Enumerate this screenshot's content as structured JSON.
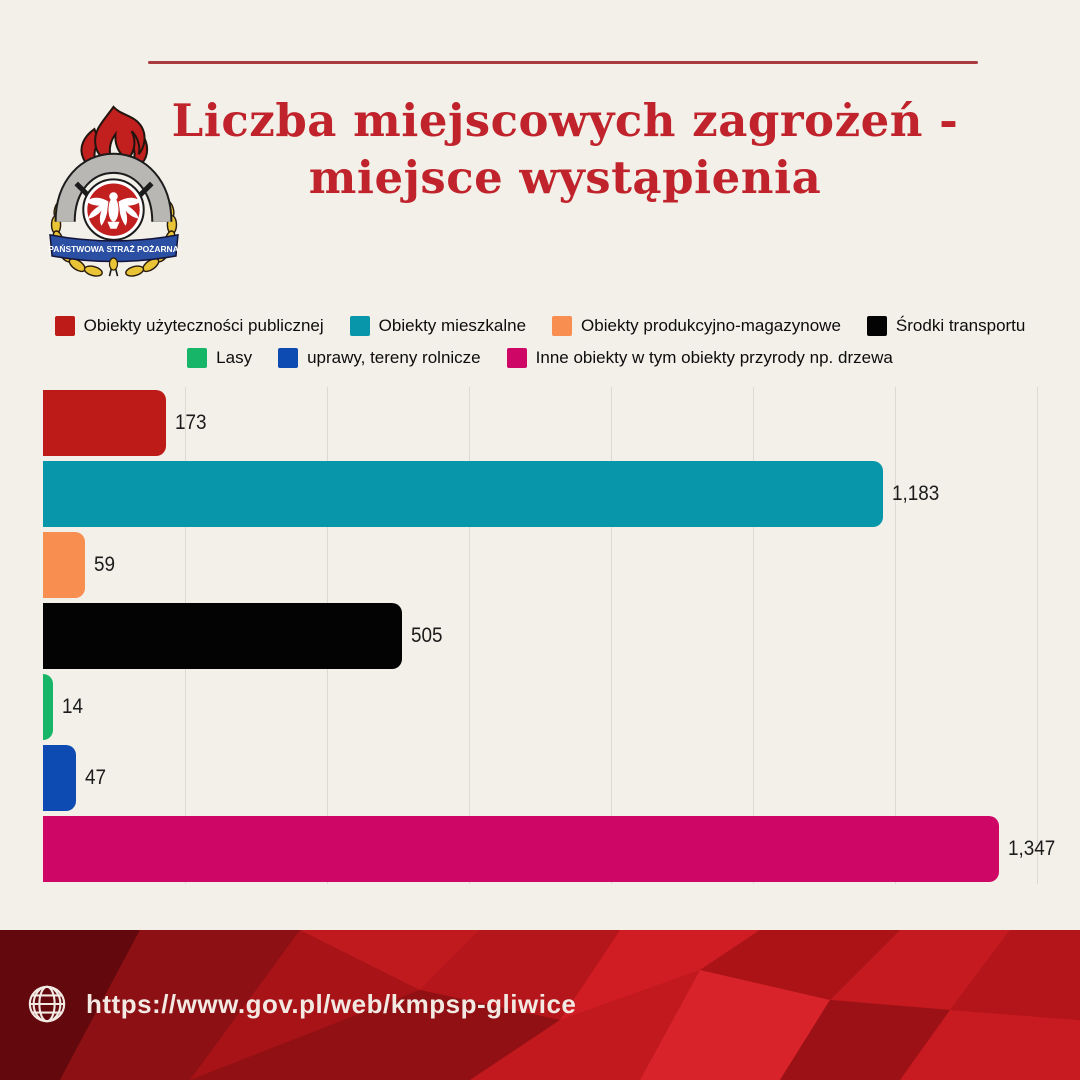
{
  "page": {
    "background": "#f2f0e8"
  },
  "header": {
    "title_line1": "Liczba miejscowych zagrożeń -",
    "title_line2": "miejsce wystąpienia",
    "title_color": "#c0232b",
    "logo": {
      "banner_text": "PAŃSTWOWA STRAŻ POŻARNA"
    }
  },
  "legend": {
    "rows": [
      [
        {
          "label": "Obiekty użyteczności publicznej",
          "color": "#bc1b18"
        },
        {
          "label": "Obiekty mieszkalne",
          "color": "#0796aa"
        },
        {
          "label": "Obiekty produkcyjno-magazynowe",
          "color": "#f88e4f"
        },
        {
          "label": "Środki transportu",
          "color": "#030303"
        }
      ],
      [
        {
          "label": "Lasy",
          "color": "#16b567"
        },
        {
          "label": "uprawy, tereny rolnicze",
          "color": "#0d4ab1"
        },
        {
          "label": "Inne obiekty w tym obiekty przyrody np. drzewa",
          "color": "#ce0766"
        }
      ]
    ]
  },
  "chart_data": {
    "type": "bar",
    "orientation": "horizontal",
    "title": "Liczba miejscowych zagrożeń - miejsce wystąpienia",
    "categories": [
      "Obiekty użyteczności publicznej",
      "Obiekty mieszkalne",
      "Obiekty produkcyjno-magazynowe",
      "Środki transportu",
      "Lasy",
      "uprawy, tereny rolnicze",
      "Inne obiekty w tym obiekty przyrody np. drzewa"
    ],
    "values": [
      173,
      1183,
      59,
      505,
      14,
      47,
      1347
    ],
    "value_labels": [
      "173",
      "1,183",
      "59",
      "505",
      "14",
      "47",
      "1,347"
    ],
    "colors": [
      "#bc1b18",
      "#0796aa",
      "#f88e4f",
      "#030303",
      "#16b567",
      "#0d4ab1",
      "#ce0766"
    ],
    "xlim": [
      0,
      1400
    ],
    "gridline_step": 200,
    "grid": true,
    "gridline_color": "#dcdad1",
    "legend_position": "top",
    "xlabel": "",
    "ylabel": ""
  },
  "footer": {
    "url": "https://www.gov.pl/web/kmpsp-gliwice",
    "background": "#a31216",
    "text_color": "#f2e9e3",
    "icon": "globe-icon"
  }
}
